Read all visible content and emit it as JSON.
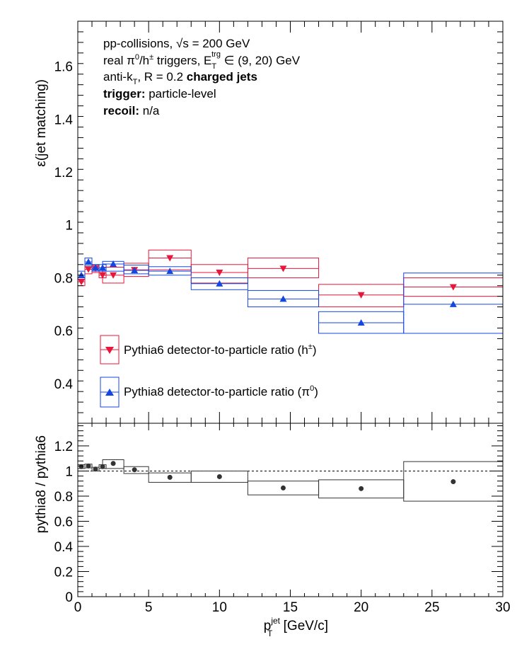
{
  "chart_data": [
    {
      "type": "scatter",
      "name": "efficiency-panel",
      "ylabel": "ε(jet matching)",
      "xlim": [
        0,
        30
      ],
      "ylim": [
        0.25,
        1.77
      ],
      "yticks": [
        0.4,
        0.6,
        0.8,
        1,
        1.2,
        1.4,
        1.6
      ],
      "info_lines": [
        {
          "a": "pp-collisions, ",
          "b": "√s",
          "c": " = 200 GeV"
        },
        {
          "a": "real π",
          "sup1": "0",
          "b": "/h",
          "sup2": "±",
          "c": " triggers, E",
          "sub": "T",
          "sup3": "trg",
          "d": " ∈ (9, 20) GeV"
        },
        {
          "a": "anti-k",
          "sub": "T",
          "b": ", R = 0.2 ",
          "bold": "charged jets"
        },
        {
          "bold": "trigger:",
          "rest": " particle-level"
        },
        {
          "bold": "recoil:",
          "rest": " n/a"
        }
      ],
      "legend": [
        {
          "label": "Pythia6 detector-to-particle ratio (h",
          "sup": "±",
          "tail": ")",
          "color": "#e8163a",
          "marker": "triangle-down"
        },
        {
          "label": "Pythia8 detector-to-particle ratio (π",
          "sup": "0",
          "tail": ")",
          "color": "#1446e0",
          "marker": "triangle-up"
        }
      ],
      "series": [
        {
          "label": "Pythia6 (h±)",
          "color": "#e8163a",
          "marker": "triangle-down",
          "points": [
            {
              "x": 0.25,
              "y": 0.785,
              "xlo": 0.0,
              "xhi": 0.5,
              "ylo": 0.77,
              "yhi": 0.8
            },
            {
              "x": 0.75,
              "y": 0.832,
              "xlo": 0.5,
              "xhi": 1.0,
              "ylo": 0.815,
              "yhi": 0.852
            },
            {
              "x": 1.25,
              "y": 0.835,
              "xlo": 1.0,
              "xhi": 1.5,
              "ylo": 0.82,
              "yhi": 0.848
            },
            {
              "x": 1.75,
              "y": 0.81,
              "xlo": 1.5,
              "xhi": 2.0,
              "ylo": 0.8,
              "yhi": 0.82
            },
            {
              "x": 2.5,
              "y": 0.81,
              "xlo": 1.75,
              "xhi": 3.25,
              "ylo": 0.78,
              "yhi": 0.84
            },
            {
              "x": 4.0,
              "y": 0.83,
              "xlo": 3.25,
              "xhi": 5.0,
              "ylo": 0.805,
              "yhi": 0.855
            },
            {
              "x": 6.5,
              "y": 0.875,
              "xlo": 5.0,
              "xhi": 8.0,
              "ylo": 0.83,
              "yhi": 0.905
            },
            {
              "x": 10.0,
              "y": 0.82,
              "xlo": 8.0,
              "xhi": 12.0,
              "ylo": 0.78,
              "yhi": 0.85
            },
            {
              "x": 14.5,
              "y": 0.835,
              "xlo": 12.0,
              "xhi": 17.0,
              "ylo": 0.8,
              "yhi": 0.875
            },
            {
              "x": 20.0,
              "y": 0.735,
              "xlo": 17.0,
              "xhi": 23.0,
              "ylo": 0.69,
              "yhi": 0.775
            },
            {
              "x": 26.5,
              "y": 0.765,
              "xlo": 23.0,
              "xhi": 30.0,
              "ylo": 0.73,
              "yhi": 0.8
            }
          ]
        },
        {
          "label": "Pythia8 (π0)",
          "color": "#1446e0",
          "marker": "triangle-up",
          "points": [
            {
              "x": 0.25,
              "y": 0.81,
              "xlo": 0.0,
              "xhi": 0.5,
              "ylo": 0.795,
              "yhi": 0.825
            },
            {
              "x": 0.75,
              "y": 0.86,
              "xlo": 0.5,
              "xhi": 1.0,
              "ylo": 0.845,
              "yhi": 0.875
            },
            {
              "x": 1.25,
              "y": 0.838,
              "xlo": 1.0,
              "xhi": 1.5,
              "ylo": 0.825,
              "yhi": 0.85
            },
            {
              "x": 1.75,
              "y": 0.838,
              "xlo": 1.5,
              "xhi": 2.0,
              "ylo": 0.825,
              "yhi": 0.85
            },
            {
              "x": 2.5,
              "y": 0.852,
              "xlo": 1.75,
              "xhi": 3.25,
              "ylo": 0.825,
              "yhi": 0.862
            },
            {
              "x": 4.0,
              "y": 0.828,
              "xlo": 3.25,
              "xhi": 5.0,
              "ylo": 0.815,
              "yhi": 0.848
            },
            {
              "x": 6.5,
              "y": 0.825,
              "xlo": 5.0,
              "xhi": 8.0,
              "ylo": 0.81,
              "yhi": 0.842
            },
            {
              "x": 10.0,
              "y": 0.778,
              "xlo": 8.0,
              "xhi": 12.0,
              "ylo": 0.755,
              "yhi": 0.8
            },
            {
              "x": 14.5,
              "y": 0.72,
              "xlo": 12.0,
              "xhi": 17.0,
              "ylo": 0.69,
              "yhi": 0.752
            },
            {
              "x": 20.0,
              "y": 0.63,
              "xlo": 17.0,
              "xhi": 23.0,
              "ylo": 0.59,
              "yhi": 0.672
            },
            {
              "x": 26.5,
              "y": 0.7,
              "xlo": 23.0,
              "xhi": 30.0,
              "ylo": 0.59,
              "yhi": 0.818
            }
          ]
        }
      ]
    },
    {
      "type": "scatter",
      "name": "ratio-panel",
      "ylabel": "pythia8 / pythia6",
      "xlabel_main": "p",
      "xlabel_sup": "jet",
      "xlabel_sub": "T",
      "xlabel_tail": " [GeV/c]",
      "xlim": [
        0,
        30
      ],
      "ylim": [
        0,
        1.38
      ],
      "xticks": [
        0,
        5,
        10,
        15,
        20,
        25,
        30
      ],
      "yticks": [
        0,
        0.2,
        0.4,
        0.6,
        0.8,
        1,
        1.2
      ],
      "tick_labels": {
        "y": [
          "0",
          "0.2",
          "0.4",
          "0.6",
          "0.8",
          "1",
          "1.2"
        ],
        "x": [
          "0",
          "5",
          "10",
          "15",
          "20",
          "25",
          "30"
        ]
      },
      "reference_line": 1.0,
      "color": "#333333",
      "points": [
        {
          "x": 0.25,
          "y": 1.035,
          "xlo": 0.0,
          "xhi": 0.5,
          "ylo": 1.02,
          "yhi": 1.05
        },
        {
          "x": 0.75,
          "y": 1.04,
          "xlo": 0.5,
          "xhi": 1.0,
          "ylo": 1.025,
          "yhi": 1.055
        },
        {
          "x": 1.25,
          "y": 1.015,
          "xlo": 1.0,
          "xhi": 1.5,
          "ylo": 1.0,
          "yhi": 1.03
        },
        {
          "x": 1.75,
          "y": 1.035,
          "xlo": 1.5,
          "xhi": 2.0,
          "ylo": 1.02,
          "yhi": 1.05
        },
        {
          "x": 2.5,
          "y": 1.06,
          "xlo": 1.75,
          "xhi": 3.25,
          "ylo": 1.02,
          "yhi": 1.09
        },
        {
          "x": 4.0,
          "y": 1.01,
          "xlo": 3.25,
          "xhi": 5.0,
          "ylo": 0.98,
          "yhi": 1.035
        },
        {
          "x": 6.5,
          "y": 0.95,
          "xlo": 5.0,
          "xhi": 8.0,
          "ylo": 0.91,
          "yhi": 0.985
        },
        {
          "x": 10.0,
          "y": 0.955,
          "xlo": 8.0,
          "xhi": 12.0,
          "ylo": 0.91,
          "yhi": 1.0
        },
        {
          "x": 14.5,
          "y": 0.865,
          "xlo": 12.0,
          "xhi": 17.0,
          "ylo": 0.81,
          "yhi": 0.92
        },
        {
          "x": 20.0,
          "y": 0.86,
          "xlo": 17.0,
          "xhi": 23.0,
          "ylo": 0.785,
          "yhi": 0.93
        },
        {
          "x": 26.5,
          "y": 0.915,
          "xlo": 23.0,
          "xhi": 30.0,
          "ylo": 0.76,
          "yhi": 1.075
        }
      ]
    }
  ],
  "top_tick_labels": [
    "0.4",
    "0.6",
    "0.8",
    "1",
    "1.2",
    "1.4",
    "1.6"
  ]
}
